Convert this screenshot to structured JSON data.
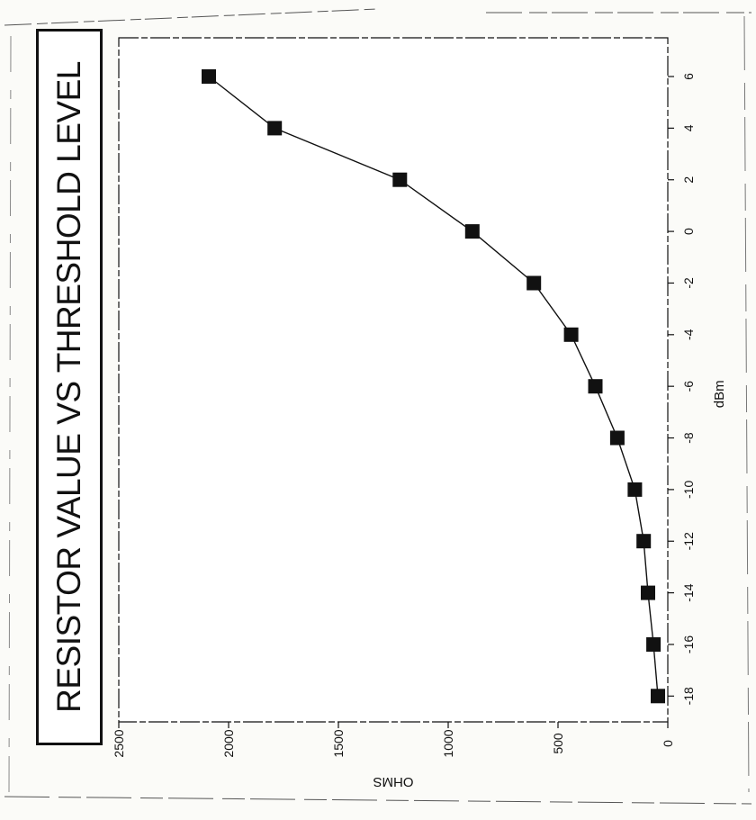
{
  "chart_data": {
    "type": "line",
    "title": "RESISTOR VALUE VS THRESHOLD LEVEL",
    "xlabel": "dBm",
    "ylabel": "OHMS",
    "x": [
      -18,
      -16,
      -14,
      -12,
      -10,
      -8,
      -6,
      -4,
      -2,
      0,
      2,
      4,
      6
    ],
    "series": [
      {
        "values": [
          45,
          65,
          90,
          110,
          150,
          230,
          330,
          440,
          610,
          890,
          1220,
          1790,
          2090
        ]
      }
    ],
    "xlim": [
      -19,
      7.5
    ],
    "ylim": [
      0,
      2500
    ],
    "xticks": [
      "-18",
      "-16",
      "-14",
      "-12",
      "-10",
      "-8",
      "-6",
      "-4",
      "-2",
      "0",
      "2",
      "4",
      "6"
    ],
    "yticks": [
      "0",
      "500",
      "1000",
      "1500",
      "2000",
      "2500"
    ],
    "grid": false,
    "legend": "none",
    "marker": "square",
    "orientation": "rotated-90-ccw",
    "colors": {
      "ink": "#111111",
      "paper": "#fbfbf8",
      "plot_bg": "#ffffff"
    }
  }
}
